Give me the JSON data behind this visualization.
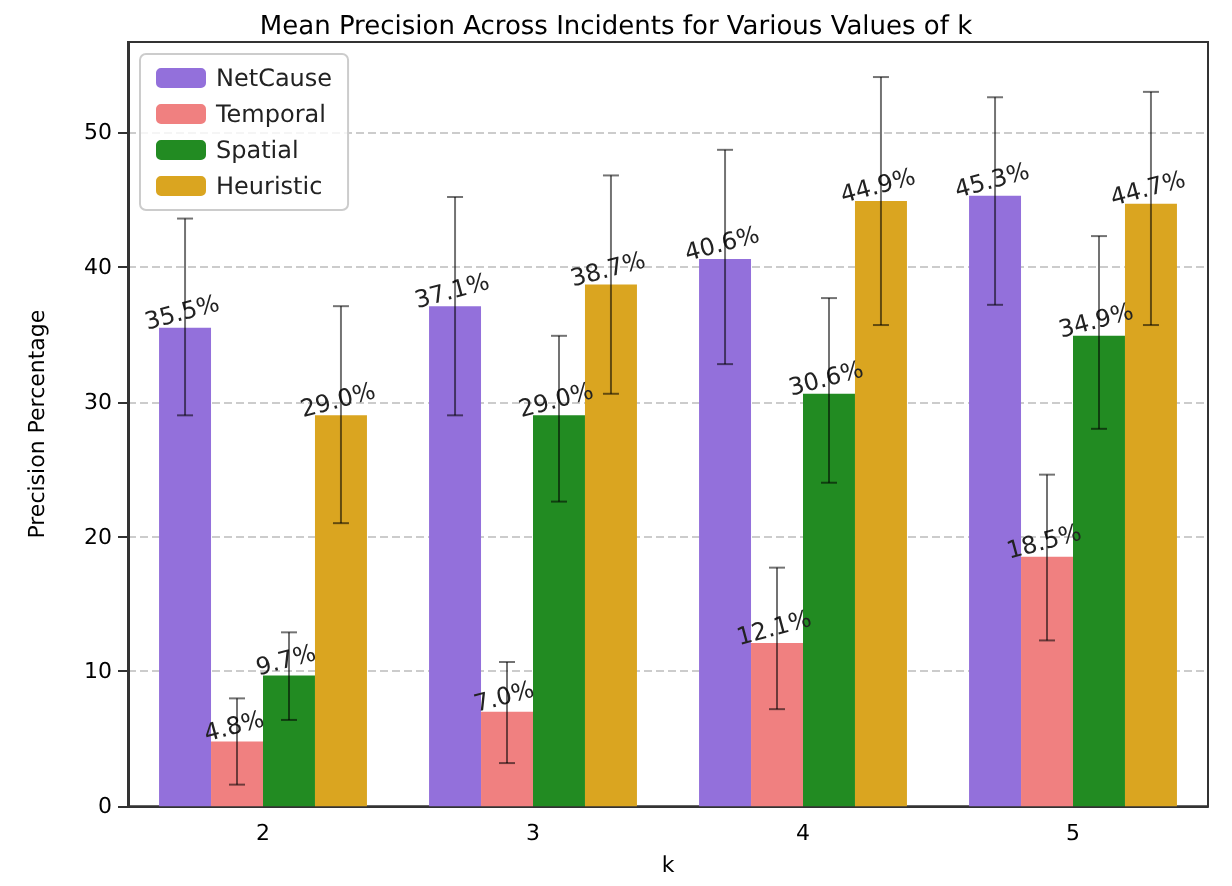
{
  "chart_data": {
    "type": "bar",
    "title": "Mean Precision Across Incidents for Various Values of k",
    "xlabel": "k",
    "ylabel": "Precision Percentage",
    "categories": [
      "2",
      "3",
      "4",
      "5"
    ],
    "series": [
      {
        "name": "NetCause",
        "color": "#9370db",
        "values": [
          35.5,
          37.1,
          40.6,
          45.3
        ],
        "value_labels": [
          "35.5%",
          "37.1%",
          "40.6%",
          "45.3%"
        ],
        "errors": [
          [
            29.0,
            43.6
          ],
          [
            29.0,
            45.2
          ],
          [
            32.8,
            48.7
          ],
          [
            37.2,
            52.6
          ]
        ]
      },
      {
        "name": "Temporal",
        "color": "#f08080",
        "values": [
          4.8,
          7.0,
          12.1,
          18.5
        ],
        "value_labels": [
          "4.8%",
          "7.0%",
          "12.1%",
          "18.5%"
        ],
        "errors": [
          [
            1.6,
            8.0
          ],
          [
            3.2,
            10.7
          ],
          [
            7.2,
            17.7
          ],
          [
            12.3,
            24.6
          ]
        ]
      },
      {
        "name": "Spatial",
        "color": "#228b22",
        "values": [
          9.7,
          29.0,
          30.6,
          34.9
        ],
        "value_labels": [
          "9.7%",
          "29.0%",
          "30.6%",
          "34.9%"
        ],
        "errors": [
          [
            6.4,
            12.9
          ],
          [
            22.6,
            34.9
          ],
          [
            24.0,
            37.7
          ],
          [
            28.0,
            42.3
          ]
        ]
      },
      {
        "name": "Heuristic",
        "color": "#daa520",
        "values": [
          29.0,
          38.7,
          44.9,
          44.7
        ],
        "value_labels": [
          "29.0%",
          "38.7%",
          "44.9%",
          "44.7%"
        ],
        "errors": [
          [
            21.0,
            37.1
          ],
          [
            30.6,
            46.8
          ],
          [
            35.7,
            54.1
          ],
          [
            35.7,
            53.0
          ]
        ]
      }
    ],
    "ylim": [
      0,
      56.7
    ],
    "yticks": [
      0,
      10,
      20,
      30,
      40,
      50
    ],
    "grid": "y",
    "legend": "top left"
  }
}
